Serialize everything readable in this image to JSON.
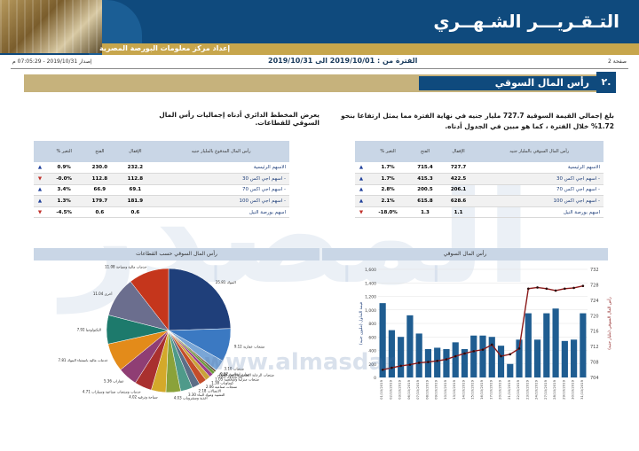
{
  "header": {
    "title": "التـقـريـــر الشـهــري",
    "subtitle": "إعداد مركز معلومات البورصة المصرية",
    "accent": "#0f4a7d",
    "gold": "#c7a64c"
  },
  "meta": {
    "page": "صفحة 2",
    "period": "الفترة من : 2019/10/01 الى 2019/10/31",
    "issued": "إصدار 2019/10/31 - 07:05:29 م"
  },
  "section": {
    "number": "٢.",
    "title": "رأس المال السوقي"
  },
  "paragraphs": {
    "right": "بلغ إجمالي القيمة السوقية 727.7 مليار جنيه في نهاية الفترة مما يمثل ارتفاعا بنحو 1.72% خلال الفترة ، كما هو مبين في الجدول أدناه.",
    "left": "يعرض المخطط الدائري أدناه إجماليات رأس المال السوقي للقطاعات."
  },
  "table_right": {
    "headers": [
      "رأس المال السوقي بالمليار جنيه",
      "الإقفال",
      "الفتح",
      "% التغير"
    ],
    "rows": [
      {
        "name": "الاسهم الرئيسية",
        "close": "727.7",
        "open": "715.4",
        "change": "1.7%",
        "dir": "▲"
      },
      {
        "name": "- اسهم اجي اكس 30",
        "close": "422.5",
        "open": "415.3",
        "change": "1.7%",
        "dir": "▲"
      },
      {
        "name": "- اسهم اجي اكس 70",
        "close": "206.1",
        "open": "200.5",
        "change": "2.8%",
        "dir": "▲"
      },
      {
        "name": "- اسهم اجي اكس 100",
        "close": "628.6",
        "open": "615.8",
        "change": "2.1%",
        "dir": "▲"
      },
      {
        "name": "اسهم بورصة النيل",
        "close": "1.1",
        "open": "1.3",
        "change": "-18.0%",
        "dir": "▼"
      }
    ]
  },
  "table_left": {
    "headers": [
      "رأس المال المدفوع بالمليار جنيه",
      "الإقفال",
      "الفتح",
      "% التغير"
    ],
    "rows": [
      {
        "name": "الاسهم الرئيسية",
        "close": "232.2",
        "open": "230.0",
        "change": "0.9%",
        "dir": "▲"
      },
      {
        "name": "- اسهم اجي اكس 30",
        "close": "112.8",
        "open": "112.8",
        "change": "-0.0%",
        "dir": "▼"
      },
      {
        "name": "- اسهم اجي اكس 70",
        "close": "69.1",
        "open": "66.9",
        "change": "3.4%",
        "dir": "▲"
      },
      {
        "name": "- اسهم اجي اكس 100",
        "close": "181.9",
        "open": "179.7",
        "change": "1.3%",
        "dir": "▲"
      },
      {
        "name": "اسهم بورصة النيل",
        "close": "0.6",
        "open": "0.6",
        "change": "-4.5%",
        "dir": "▼"
      }
    ]
  },
  "chart_titles": {
    "market_cap": "رأس المال السوقي",
    "sectors": "رأس المال السوقي حسب القطاعات"
  },
  "watermark": {
    "word": "المصدر",
    "url": "www.almasdar"
  },
  "chart_data": [
    {
      "type": "bar",
      "title": "رأس المال السوقي",
      "categories": [
        "01/10/2019",
        "02/10/2019",
        "03/10/2019",
        "06/10/2019",
        "07/10/2019",
        "08/10/2019",
        "09/10/2019",
        "10/10/2019",
        "13/10/2019",
        "14/10/2019",
        "15/10/2019",
        "16/10/2019",
        "17/10/2019",
        "20/10/2019",
        "21/10/2019",
        "22/10/2019",
        "23/10/2019",
        "24/10/2019",
        "27/10/2019",
        "28/10/2019",
        "29/10/2019",
        "30/10/2019",
        "31/10/2019"
      ],
      "series": [
        {
          "name": "قيمة التداول (مليون جنيه)",
          "axis": "left",
          "color": "#1f5d91",
          "values": [
            1100,
            700,
            600,
            920,
            650,
            420,
            440,
            420,
            520,
            420,
            620,
            620,
            600,
            470,
            200,
            560,
            950,
            560,
            950,
            1020,
            540,
            560,
            950
          ]
        },
        {
          "name": "رأس المال السوقي (مليار جنيه)",
          "axis": "right",
          "color": "#8b1a1a",
          "values": [
            706,
            706.5,
            707,
            707.3,
            707.8,
            708,
            708.3,
            708.7,
            709.5,
            710.2,
            710.8,
            711.2,
            712.5,
            709.5,
            710,
            711.5,
            727,
            727.3,
            727,
            726.5,
            727,
            727.2,
            727.7
          ]
        }
      ],
      "y_left": {
        "ticks": [
          "1,600",
          "1,400",
          "1,200",
          "1,000",
          "800",
          "600",
          "400",
          "200",
          "0"
        ],
        "range": [
          0,
          1600
        ]
      },
      "y_right": {
        "ticks": [
          "732",
          "728",
          "724",
          "720",
          "716",
          "712",
          "708",
          "704"
        ],
        "range": [
          704,
          732
        ],
        "label": "رأس المال السوقي (مليار جنيه)"
      },
      "ylabel_left": "قيمة التداول (مليون جنيه)"
    },
    {
      "type": "pie",
      "title": "رأس المال السوقي حسب القطاعات",
      "slices": [
        {
          "label": "البنوك",
          "value": 25.81,
          "color": "#1f3f7a"
        },
        {
          "label": "منتجات عقارية",
          "value": 9.12,
          "color": "#3b79c2"
        },
        {
          "label": "منتجات",
          "value": 3.1,
          "color": "#7aa6d6"
        },
        {
          "label": "موارد اساسية",
          "value": 0.12,
          "color": "#2d6aa7"
        },
        {
          "label": "منتجات الرعاية الصحية والأدوية",
          "value": 0.46,
          "color": "#5b3f1d"
        },
        {
          "label": "غاز وبترول",
          "value": 0.83,
          "color": "#6c9a3a"
        },
        {
          "label": "منتجات منزلية وشخصية",
          "value": 1.05,
          "color": "#9b3f8a"
        },
        {
          "label": "كيماويات",
          "value": 1.38,
          "color": "#caa23a"
        },
        {
          "label": "منتجات صناعية",
          "value": 2.06,
          "color": "#c44d2a"
        },
        {
          "label": "الاتصالات",
          "value": 2.18,
          "color": "#5c6e87"
        },
        {
          "label": "التشييد ومواد البناء",
          "value": 3.3,
          "color": "#4f9a8a"
        },
        {
          "label": "أغذية ومشروبات",
          "value": 4.03,
          "color": "#8aa23a"
        },
        {
          "label": "سياحة وترفيه",
          "value": 4.02,
          "color": "#d4a92a"
        },
        {
          "label": "خدمات ومنتجات صناعية وسيارات",
          "value": 4.71,
          "color": "#a9302f"
        },
        {
          "label": "عقارات",
          "value": 5.36,
          "color": "#8f3e74"
        },
        {
          "label": "خدمات مالية باستثناء البنوك",
          "value": 7.81,
          "color": "#e38b1a"
        },
        {
          "label": "التكنولوجيا",
          "value": 7.92,
          "color": "#1d7a6c"
        },
        {
          "label": "أخرى",
          "value": 11.04,
          "color": "#6b6e8e"
        },
        {
          "label": "خدمات مالية وسياحة",
          "value": 11.08,
          "color": "#c5361c"
        }
      ]
    }
  ]
}
